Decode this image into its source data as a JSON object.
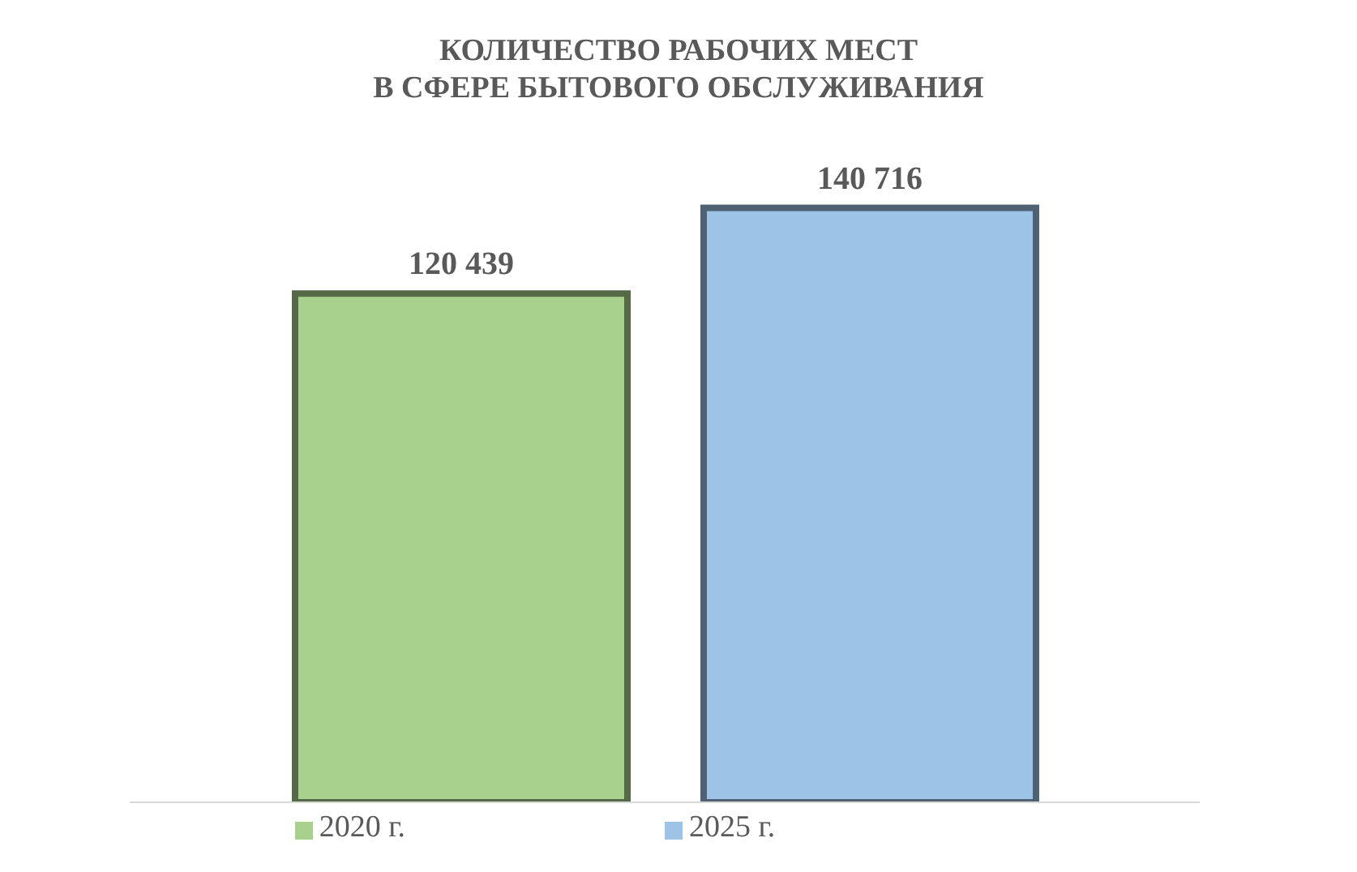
{
  "chart_data": {
    "type": "bar",
    "title": "КОЛИЧЕСТВО РАБОЧИХ МЕСТ\nВ СФЕРЕ БЫТОВОГО ОБСЛУЖИВАНИЯ",
    "categories": [
      null
    ],
    "series": [
      {
        "name": "2020 г.",
        "color": "#a9d18e",
        "values": [
          120439
        ],
        "value_labels": [
          "120 439"
        ]
      },
      {
        "name": "2025 г.",
        "color": "#9dc3e6",
        "values": [
          140716
        ],
        "value_labels": [
          "140 716"
        ]
      }
    ],
    "legend": "bottom"
  }
}
